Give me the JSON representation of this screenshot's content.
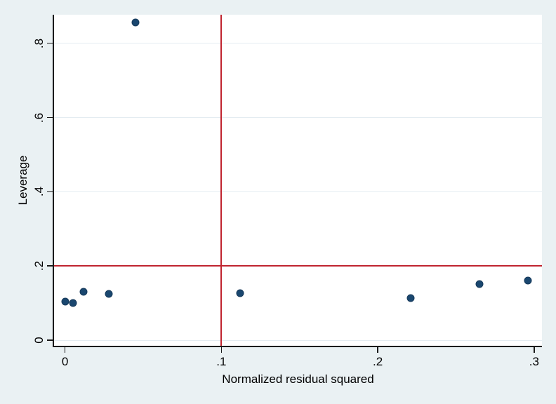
{
  "figure": {
    "background_color": "#eaf1f3",
    "plot_background_color": "#ffffff"
  },
  "chart_data": {
    "type": "scatter",
    "title": "",
    "xlabel": "Normalized residual squared",
    "ylabel": "Leverage",
    "xlim": [
      -0.007,
      0.305
    ],
    "ylim": [
      -0.015,
      0.877
    ],
    "grid": "horizontal",
    "legend": "none",
    "x_ticks": [
      {
        "value": 0,
        "label": "0"
      },
      {
        "value": 0.1,
        "label": ".1"
      },
      {
        "value": 0.2,
        "label": ".2"
      },
      {
        "value": 0.3,
        "label": ".3"
      }
    ],
    "y_ticks": [
      {
        "value": 0,
        "label": "0"
      },
      {
        "value": 0.2,
        "label": ".2"
      },
      {
        "value": 0.4,
        "label": ".4"
      },
      {
        "value": 0.6,
        "label": ".6"
      },
      {
        "value": 0.8,
        "label": ".8"
      }
    ],
    "points": [
      {
        "x": 0.0,
        "y": 0.104
      },
      {
        "x": 0.005,
        "y": 0.101
      },
      {
        "x": 0.012,
        "y": 0.131
      },
      {
        "x": 0.028,
        "y": 0.125
      },
      {
        "x": 0.045,
        "y": 0.857
      },
      {
        "x": 0.112,
        "y": 0.127
      },
      {
        "x": 0.221,
        "y": 0.113
      },
      {
        "x": 0.265,
        "y": 0.151
      },
      {
        "x": 0.296,
        "y": 0.161
      }
    ],
    "reference_lines": [
      {
        "orientation": "vertical",
        "value": 0.1
      },
      {
        "orientation": "horizontal",
        "value": 0.2
      }
    ],
    "colors": {
      "marker": "#1a476f",
      "marker_edge": "#16395a",
      "reference_line": "#c0242f",
      "gridline": "#e4ecf1",
      "axis": "#1a1a1a"
    },
    "marker_size_px": 9
  }
}
